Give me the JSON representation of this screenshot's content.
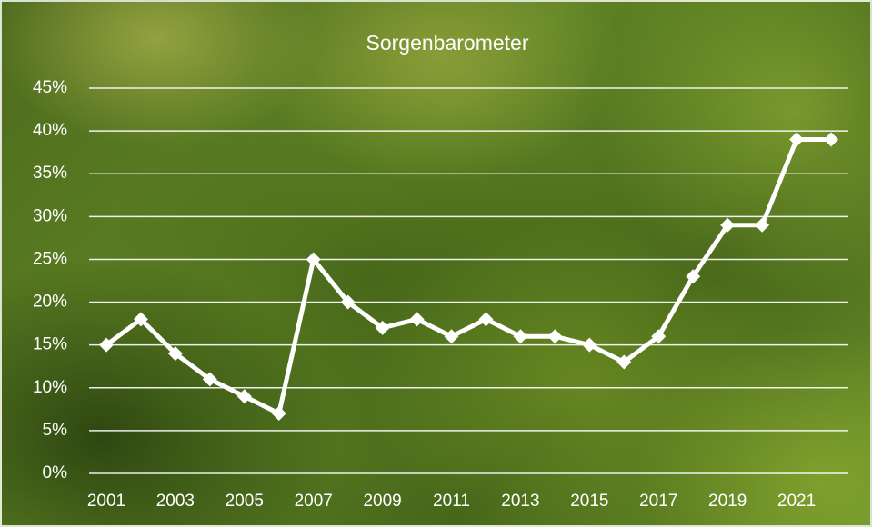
{
  "chart_data": {
    "type": "line",
    "title": "Sorgenbarometer",
    "categories": [
      "2001",
      null,
      "2003",
      null,
      "2005",
      null,
      "2007",
      null,
      "2009",
      null,
      "2011",
      null,
      "2013",
      null,
      "2015",
      null,
      "2017",
      null,
      "2019",
      null,
      "2021",
      null
    ],
    "values": [
      15,
      18,
      14,
      11,
      9,
      7,
      25,
      20,
      17,
      18,
      16,
      18,
      16,
      16,
      15,
      13,
      16,
      23,
      29,
      29,
      39,
      39
    ],
    "color": "#ffffff",
    "ylim": [
      0,
      45
    ],
    "yticks": [
      {
        "value": 0,
        "label": "0%"
      },
      {
        "value": 5,
        "label": "5%"
      },
      {
        "value": 10,
        "label": "10%"
      },
      {
        "value": 15,
        "label": "15%"
      },
      {
        "value": 20,
        "label": "20%"
      },
      {
        "value": 25,
        "label": "25%"
      },
      {
        "value": 30,
        "label": "30%"
      },
      {
        "value": 35,
        "label": "35%"
      },
      {
        "value": 40,
        "label": "40%"
      },
      {
        "value": 45,
        "label": "45%"
      }
    ],
    "grid": true
  }
}
